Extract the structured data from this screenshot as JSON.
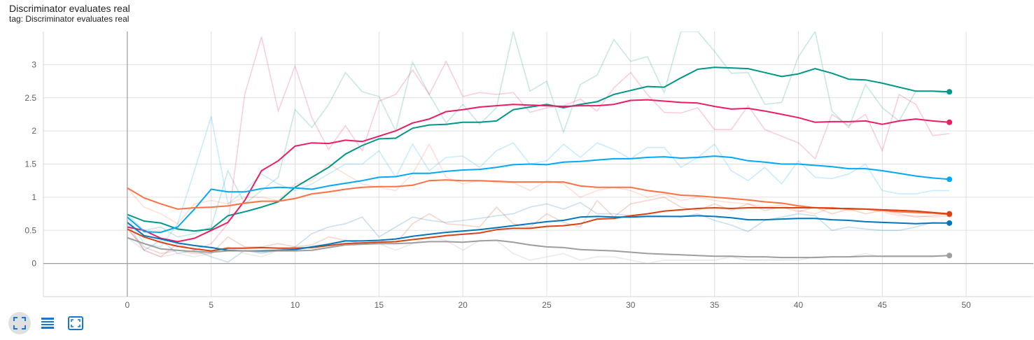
{
  "title": "Discriminator evaluates real",
  "subtitle": "tag: Discriminator evaluates real",
  "toolbar": {
    "icons": [
      "fit-domain-icon",
      "toggle-log-scale-icon",
      "expand-chart-icon"
    ]
  },
  "chart_data": {
    "type": "line",
    "title": "Discriminator evaluates real",
    "xlabel": "",
    "ylabel": "",
    "xlim": [
      -5,
      54
    ],
    "ylim": [
      -0.5,
      3.5
    ],
    "xticks": [
      0,
      5,
      10,
      15,
      20,
      25,
      30,
      35,
      40,
      45,
      50
    ],
    "yticks": [
      0,
      0.5,
      1,
      1.5,
      2,
      2.5,
      3
    ],
    "ytick_labels": [
      "0",
      "0.5",
      "1",
      "1.5",
      "2",
      "2.5",
      "3"
    ],
    "grid": true,
    "legend": "none",
    "x": [
      0,
      1,
      2,
      3,
      4,
      5,
      6,
      7,
      8,
      9,
      10,
      11,
      12,
      13,
      14,
      15,
      16,
      17,
      18,
      19,
      20,
      21,
      22,
      23,
      24,
      25,
      26,
      27,
      28,
      29,
      30,
      31,
      32,
      33,
      34,
      35,
      36,
      37,
      38,
      39,
      40,
      41,
      42,
      43,
      44,
      45,
      46,
      47,
      48,
      49
    ],
    "series": [
      {
        "color": "#009688",
        "values": [
          0.74,
          0.64,
          0.61,
          0.52,
          0.49,
          0.52,
          0.72,
          0.78,
          0.85,
          0.93,
          1.15,
          1.3,
          1.45,
          1.65,
          1.78,
          1.88,
          1.89,
          2.04,
          2.09,
          2.1,
          2.13,
          2.13,
          2.15,
          2.32,
          2.36,
          2.4,
          2.35,
          2.4,
          2.44,
          2.55,
          2.61,
          2.67,
          2.66,
          2.8,
          2.93,
          2.96,
          2.95,
          2.94,
          2.88,
          2.82,
          2.86,
          2.94,
          2.87,
          2.78,
          2.77,
          2.72,
          2.66,
          2.6,
          2.6,
          2.59
        ],
        "raw": [
          0.74,
          0.5,
          0.55,
          0.4,
          0.45,
          0.55,
          1.4,
          0.9,
          1.1,
          1.3,
          2.32,
          2.05,
          2.4,
          2.88,
          2.59,
          2.52,
          2.0,
          3.04,
          2.55,
          2.12,
          2.4,
          2.1,
          2.35,
          3.5,
          2.6,
          2.75,
          1.98,
          2.7,
          2.84,
          3.38,
          3.05,
          3.12,
          2.58,
          3.5,
          3.5,
          3.2,
          2.87,
          2.88,
          2.4,
          2.43,
          3.12,
          3.5,
          2.3,
          2.05,
          2.7,
          2.35,
          2.15,
          2.6,
          2.6,
          2.56
        ]
      },
      {
        "color": "#e91e63",
        "values": [
          0.55,
          0.5,
          0.38,
          0.33,
          0.38,
          0.5,
          0.62,
          0.95,
          1.4,
          1.55,
          1.77,
          1.82,
          1.81,
          1.86,
          1.84,
          1.92,
          2.0,
          2.12,
          2.18,
          2.29,
          2.32,
          2.36,
          2.38,
          2.4,
          2.39,
          2.38,
          2.37,
          2.38,
          2.38,
          2.4,
          2.46,
          2.47,
          2.45,
          2.43,
          2.42,
          2.37,
          2.33,
          2.34,
          2.3,
          2.25,
          2.2,
          2.13,
          2.14,
          2.14,
          2.15,
          2.1,
          2.15,
          2.18,
          2.15,
          2.13
        ],
        "raw": [
          0.55,
          0.2,
          0.1,
          0.3,
          0.2,
          0.3,
          0.6,
          2.55,
          3.42,
          2.3,
          2.98,
          2.2,
          1.72,
          2.08,
          1.7,
          2.45,
          2.55,
          2.92,
          2.55,
          3.05,
          2.52,
          2.58,
          2.55,
          2.58,
          2.28,
          2.35,
          2.38,
          2.48,
          2.3,
          2.65,
          2.88,
          2.55,
          2.28,
          2.27,
          2.35,
          2.02,
          2.02,
          2.38,
          2.02,
          1.92,
          1.82,
          1.58,
          2.25,
          2.08,
          2.25,
          1.7,
          2.55,
          2.4,
          1.93,
          1.96
        ]
      },
      {
        "color": "#03a9f4",
        "values": [
          0.7,
          0.48,
          0.47,
          0.55,
          0.82,
          1.12,
          1.08,
          1.08,
          1.13,
          1.15,
          1.14,
          1.12,
          1.17,
          1.21,
          1.25,
          1.3,
          1.31,
          1.36,
          1.36,
          1.39,
          1.41,
          1.42,
          1.45,
          1.49,
          1.5,
          1.49,
          1.53,
          1.54,
          1.56,
          1.58,
          1.58,
          1.6,
          1.61,
          1.59,
          1.6,
          1.62,
          1.6,
          1.55,
          1.53,
          1.5,
          1.5,
          1.48,
          1.46,
          1.43,
          1.43,
          1.4,
          1.36,
          1.32,
          1.29,
          1.27
        ],
        "raw": [
          0.7,
          0.3,
          0.25,
          0.6,
          1.4,
          2.22,
          0.9,
          1.1,
          1.35,
          1.2,
          1.1,
          1.2,
          1.35,
          1.5,
          1.5,
          1.7,
          1.3,
          1.8,
          1.4,
          1.6,
          1.62,
          1.45,
          1.7,
          1.82,
          1.5,
          1.55,
          1.8,
          1.6,
          1.82,
          1.72,
          1.58,
          1.75,
          1.75,
          1.45,
          1.6,
          1.8,
          1.4,
          1.25,
          1.45,
          1.2,
          1.55,
          1.3,
          1.28,
          1.35,
          1.5,
          1.1,
          1.05,
          1.05,
          1.1,
          1.1
        ]
      },
      {
        "color": "#ff7043",
        "values": [
          1.14,
          0.99,
          0.9,
          0.82,
          0.84,
          0.85,
          0.87,
          0.91,
          0.94,
          0.94,
          0.98,
          1.05,
          1.08,
          1.12,
          1.15,
          1.16,
          1.16,
          1.18,
          1.25,
          1.26,
          1.25,
          1.25,
          1.24,
          1.23,
          1.23,
          1.23,
          1.23,
          1.17,
          1.15,
          1.15,
          1.15,
          1.1,
          1.07,
          1.03,
          1.02,
          1.0,
          0.98,
          0.96,
          0.93,
          0.91,
          0.87,
          0.84,
          0.84,
          0.82,
          0.82,
          0.8,
          0.78,
          0.77,
          0.76,
          0.74
        ],
        "raw": [
          1.14,
          0.85,
          0.75,
          0.6,
          0.9,
          0.95,
          0.9,
          1.0,
          1.0,
          0.95,
          1.2,
          1.25,
          1.5,
          1.35,
          1.2,
          1.15,
          1.1,
          1.35,
          1.8,
          1.3,
          1.2,
          1.25,
          1.22,
          1.22,
          1.1,
          1.25,
          1.2,
          1.0,
          1.1,
          1.15,
          1.1,
          1.0,
          1.05,
          0.95,
          1.0,
          0.95,
          0.92,
          0.9,
          0.85,
          0.88,
          0.8,
          0.75,
          0.85,
          0.8,
          0.82,
          0.78,
          0.72,
          0.72,
          0.7,
          0.72
        ]
      },
      {
        "color": "#d84315",
        "values": [
          0.52,
          0.4,
          0.32,
          0.26,
          0.22,
          0.19,
          0.23,
          0.23,
          0.24,
          0.23,
          0.23,
          0.24,
          0.27,
          0.3,
          0.31,
          0.32,
          0.33,
          0.36,
          0.39,
          0.42,
          0.44,
          0.46,
          0.51,
          0.53,
          0.53,
          0.56,
          0.57,
          0.6,
          0.67,
          0.68,
          0.72,
          0.75,
          0.79,
          0.81,
          0.83,
          0.84,
          0.83,
          0.84,
          0.84,
          0.84,
          0.84,
          0.84,
          0.83,
          0.83,
          0.82,
          0.81,
          0.8,
          0.79,
          0.77,
          0.75
        ],
        "raw": [
          0.52,
          0.25,
          0.15,
          0.2,
          0.15,
          0.15,
          0.4,
          0.25,
          0.25,
          0.3,
          0.25,
          0.28,
          0.4,
          0.35,
          0.3,
          0.35,
          0.3,
          0.6,
          0.75,
          0.6,
          0.58,
          0.55,
          0.85,
          0.6,
          0.55,
          0.75,
          0.62,
          0.55,
          0.95,
          0.7,
          0.9,
          0.95,
          1.0,
          0.85,
          0.8,
          0.9,
          0.8,
          0.9,
          0.8,
          0.85,
          0.78,
          0.85,
          0.75,
          0.82,
          0.75,
          0.8,
          0.75,
          0.7,
          0.72,
          0.75
        ]
      },
      {
        "color": "#0277bd",
        "values": [
          0.62,
          0.42,
          0.37,
          0.31,
          0.27,
          0.24,
          0.2,
          0.19,
          0.19,
          0.2,
          0.21,
          0.25,
          0.29,
          0.34,
          0.34,
          0.35,
          0.37,
          0.41,
          0.44,
          0.47,
          0.49,
          0.51,
          0.54,
          0.57,
          0.6,
          0.63,
          0.65,
          0.7,
          0.71,
          0.7,
          0.7,
          0.71,
          0.71,
          0.71,
          0.72,
          0.71,
          0.69,
          0.66,
          0.66,
          0.67,
          0.68,
          0.68,
          0.66,
          0.65,
          0.63,
          0.62,
          0.61,
          0.6,
          0.61,
          0.61
        ],
        "raw": [
          0.62,
          0.2,
          0.35,
          0.15,
          0.2,
          0.1,
          0.02,
          0.2,
          0.15,
          0.2,
          0.25,
          0.45,
          0.55,
          0.6,
          0.7,
          0.4,
          0.55,
          0.7,
          0.65,
          0.62,
          0.65,
          0.68,
          0.72,
          0.75,
          0.85,
          0.9,
          0.82,
          0.92,
          0.75,
          0.75,
          0.72,
          0.72,
          0.72,
          0.7,
          0.75,
          0.65,
          0.58,
          0.48,
          0.65,
          0.7,
          0.75,
          0.72,
          0.5,
          0.55,
          0.52,
          0.5,
          0.5,
          0.55,
          0.62,
          0.6
        ]
      },
      {
        "color": "#9e9e9e",
        "values": [
          0.39,
          0.3,
          0.22,
          0.2,
          0.18,
          0.17,
          0.19,
          0.19,
          0.18,
          0.19,
          0.19,
          0.2,
          0.24,
          0.28,
          0.29,
          0.3,
          0.3,
          0.31,
          0.33,
          0.33,
          0.32,
          0.34,
          0.35,
          0.32,
          0.28,
          0.25,
          0.24,
          0.21,
          0.2,
          0.19,
          0.17,
          0.15,
          0.14,
          0.13,
          0.12,
          0.11,
          0.11,
          0.1,
          0.1,
          0.09,
          0.09,
          0.09,
          0.1,
          0.1,
          0.11,
          0.11,
          0.11,
          0.11,
          0.11,
          0.12
        ],
        "raw": [
          0.39,
          0.2,
          0.1,
          0.15,
          0.1,
          0.15,
          0.25,
          0.15,
          0.1,
          0.2,
          0.2,
          0.2,
          0.3,
          0.35,
          0.3,
          0.3,
          0.2,
          0.3,
          0.4,
          0.35,
          0.2,
          0.35,
          0.35,
          0.15,
          0.05,
          0.1,
          0.15,
          0.05,
          0.1,
          0.1,
          0.05,
          0.0,
          0.05,
          0.05,
          0.05,
          0.05,
          0.1,
          0.05,
          0.05,
          0.05,
          0.05,
          0.1,
          0.1,
          0.1,
          0.15,
          0.1,
          0.1,
          0.1,
          0.1,
          0.12
        ]
      }
    ]
  }
}
